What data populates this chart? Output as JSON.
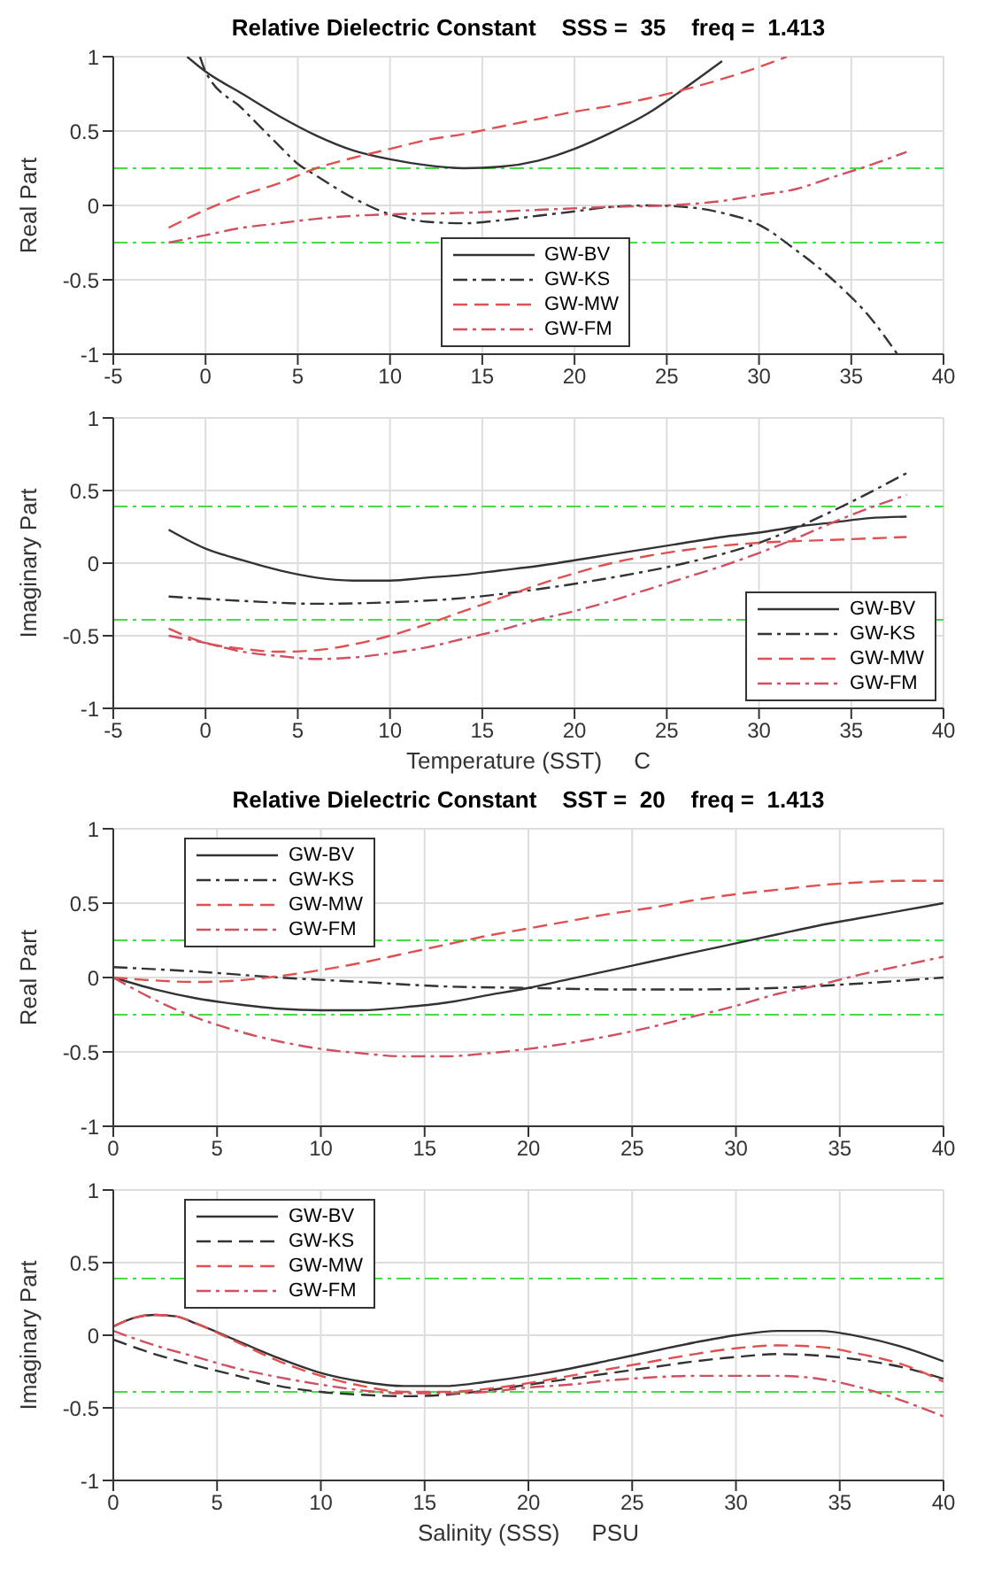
{
  "chart_data": [
    {
      "type": "line",
      "title": "Relative Dielectric Constant    SSS =  35    freq =  1.413",
      "ylabel": "Real Part",
      "xlim": [
        -5,
        40
      ],
      "xticks": [
        -5,
        0,
        5,
        10,
        15,
        20,
        25,
        30,
        35,
        40
      ],
      "ylim": [
        -1,
        1
      ],
      "yticks": [
        -1,
        -0.5,
        0,
        0.5,
        1
      ],
      "grid": true,
      "legend": "bottom",
      "marker": "none",
      "ref_lines": [
        {
          "axis": "y",
          "value": 0.25,
          "color": "#44dd44",
          "line_style": "dashdot"
        },
        {
          "axis": "y",
          "value": -0.25,
          "color": "#44dd44",
          "line_style": "dashdot"
        }
      ],
      "series": [
        {
          "name": "GW-BV",
          "color": "#333333",
          "line_style": "solid",
          "x": [
            -1,
            0,
            2,
            4,
            6,
            8,
            10,
            12,
            14,
            16,
            18,
            20,
            22,
            24,
            26,
            28
          ],
          "values": [
            1.0,
            0.9,
            0.75,
            0.6,
            0.47,
            0.37,
            0.31,
            0.27,
            0.25,
            0.26,
            0.3,
            0.38,
            0.49,
            0.62,
            0.79,
            0.97
          ]
        },
        {
          "name": "GW-KS",
          "color": "#333333",
          "line_style": "dashdot",
          "x": [
            -0.3,
            0,
            2,
            4,
            5,
            6,
            8,
            10,
            12,
            14,
            16,
            18,
            20,
            22,
            24,
            26,
            28,
            30,
            32,
            34,
            36,
            37.5
          ],
          "values": [
            1.0,
            0.9,
            0.65,
            0.4,
            0.28,
            0.2,
            0.05,
            -0.06,
            -0.11,
            -0.12,
            -0.1,
            -0.07,
            -0.04,
            -0.01,
            0.0,
            -0.01,
            -0.05,
            -0.13,
            -0.3,
            -0.5,
            -0.75,
            -1.0
          ]
        },
        {
          "name": "GW-MW",
          "color": "#e05050",
          "line_style": "dashed",
          "x": [
            -2,
            0,
            2,
            4,
            6,
            8,
            10,
            12,
            14,
            16,
            18,
            20,
            22,
            24,
            26,
            28,
            30,
            31.5
          ],
          "values": [
            -0.15,
            -0.03,
            0.07,
            0.15,
            0.25,
            0.32,
            0.38,
            0.44,
            0.48,
            0.53,
            0.58,
            0.63,
            0.67,
            0.72,
            0.78,
            0.85,
            0.93,
            1.0
          ]
        },
        {
          "name": "GW-FM",
          "color": "#d05060",
          "line_style": "dashdot",
          "x": [
            -2,
            0,
            2,
            4,
            6,
            8,
            10,
            14,
            18,
            22,
            25,
            28,
            30,
            32,
            34,
            36,
            38
          ],
          "values": [
            -0.25,
            -0.2,
            -0.15,
            -0.12,
            -0.09,
            -0.07,
            -0.06,
            -0.05,
            -0.03,
            -0.01,
            0.0,
            0.03,
            0.07,
            0.11,
            0.19,
            0.27,
            0.36
          ]
        }
      ]
    },
    {
      "type": "line",
      "xlabel": "Temperature (SST)     C",
      "ylabel": "Imaginary Part",
      "xlim": [
        -5,
        40
      ],
      "xticks": [
        -5,
        0,
        5,
        10,
        15,
        20,
        25,
        30,
        35,
        40
      ],
      "ylim": [
        -1,
        1
      ],
      "yticks": [
        -1,
        -0.5,
        0,
        0.5,
        1
      ],
      "grid": true,
      "legend": "bottom right",
      "marker": "none",
      "ref_lines": [
        {
          "axis": "y",
          "value": 0.39,
          "color": "#44dd44",
          "line_style": "dashdot"
        },
        {
          "axis": "y",
          "value": -0.39,
          "color": "#44dd44",
          "line_style": "dashdot"
        }
      ],
      "series": [
        {
          "name": "GW-BV",
          "color": "#333333",
          "line_style": "solid",
          "x": [
            -2,
            0,
            2,
            4,
            6,
            8,
            10,
            12,
            14,
            16,
            18,
            20,
            22,
            24,
            26,
            28,
            30,
            32,
            34,
            36,
            38
          ],
          "values": [
            0.23,
            0.1,
            0.02,
            -0.05,
            -0.1,
            -0.12,
            -0.12,
            -0.1,
            -0.08,
            -0.05,
            -0.02,
            0.02,
            0.06,
            0.1,
            0.14,
            0.18,
            0.21,
            0.25,
            0.28,
            0.31,
            0.32
          ]
        },
        {
          "name": "GW-KS",
          "color": "#333333",
          "line_style": "dashdot",
          "x": [
            -2,
            2,
            6,
            10,
            14,
            18,
            22,
            26,
            30,
            34,
            38
          ],
          "values": [
            -0.23,
            -0.26,
            -0.28,
            -0.27,
            -0.24,
            -0.18,
            -0.1,
            0.0,
            0.14,
            0.36,
            0.62
          ]
        },
        {
          "name": "GW-MW",
          "color": "#e05050",
          "line_style": "dashed",
          "x": [
            -2,
            0,
            2,
            4,
            6,
            8,
            10,
            12,
            14,
            16,
            18,
            20,
            22,
            24,
            26,
            28,
            30,
            34,
            38
          ],
          "values": [
            -0.45,
            -0.55,
            -0.59,
            -0.61,
            -0.6,
            -0.56,
            -0.5,
            -0.42,
            -0.33,
            -0.24,
            -0.15,
            -0.07,
            0.0,
            0.05,
            0.09,
            0.12,
            0.14,
            0.16,
            0.18
          ]
        },
        {
          "name": "GW-FM",
          "color": "#d05060",
          "line_style": "dashdot",
          "x": [
            -2,
            0,
            2,
            4,
            6,
            8,
            10,
            12,
            14,
            16,
            18,
            20,
            22,
            24,
            26,
            28,
            30,
            32,
            34,
            36,
            38
          ],
          "values": [
            -0.5,
            -0.55,
            -0.61,
            -0.64,
            -0.66,
            -0.65,
            -0.62,
            -0.58,
            -0.52,
            -0.46,
            -0.39,
            -0.33,
            -0.26,
            -0.18,
            -0.1,
            -0.02,
            0.07,
            0.17,
            0.28,
            0.38,
            0.47
          ]
        }
      ]
    },
    {
      "type": "line",
      "title": "Relative Dielectric Constant    SST =  20    freq =  1.413",
      "ylabel": "Real Part",
      "xlim": [
        0,
        40
      ],
      "xticks": [
        0,
        5,
        10,
        15,
        20,
        25,
        30,
        35,
        40
      ],
      "ylim": [
        -1,
        1
      ],
      "yticks": [
        -1,
        -0.5,
        0,
        0.5,
        1
      ],
      "grid": true,
      "legend": "top left",
      "marker": "none",
      "ref_lines": [
        {
          "axis": "y",
          "value": 0.25,
          "color": "#44dd44",
          "line_style": "dashdot"
        },
        {
          "axis": "y",
          "value": -0.25,
          "color": "#44dd44",
          "line_style": "dashdot"
        }
      ],
      "series": [
        {
          "name": "GW-BV",
          "color": "#333333",
          "line_style": "solid",
          "x": [
            0,
            2,
            4,
            6,
            8,
            10,
            12,
            14,
            16,
            18,
            20,
            22,
            24,
            26,
            28,
            30,
            32,
            34,
            36,
            38,
            40
          ],
          "values": [
            0.0,
            -0.08,
            -0.14,
            -0.18,
            -0.21,
            -0.22,
            -0.22,
            -0.2,
            -0.17,
            -0.12,
            -0.07,
            -0.01,
            0.05,
            0.11,
            0.17,
            0.23,
            0.29,
            0.35,
            0.4,
            0.45,
            0.5
          ]
        },
        {
          "name": "GW-KS",
          "color": "#333333",
          "line_style": "dashdot",
          "x": [
            0,
            4,
            8,
            12,
            16,
            20,
            24,
            28,
            32,
            36,
            40
          ],
          "values": [
            0.07,
            0.04,
            0.0,
            -0.03,
            -0.06,
            -0.07,
            -0.08,
            -0.08,
            -0.07,
            -0.04,
            0.0
          ]
        },
        {
          "name": "GW-MW",
          "color": "#e05050",
          "line_style": "dashed",
          "x": [
            0,
            2,
            4,
            6,
            8,
            10,
            12,
            14,
            16,
            18,
            20,
            22,
            24,
            26,
            28,
            30,
            32,
            34,
            36,
            38,
            40
          ],
          "values": [
            0.0,
            -0.02,
            -0.03,
            -0.02,
            0.01,
            0.05,
            0.1,
            0.16,
            0.22,
            0.28,
            0.33,
            0.38,
            0.43,
            0.47,
            0.52,
            0.56,
            0.59,
            0.62,
            0.64,
            0.65,
            0.65
          ]
        },
        {
          "name": "GW-FM",
          "color": "#d05060",
          "line_style": "dashdot",
          "x": [
            0,
            2,
            4,
            6,
            8,
            10,
            12,
            14,
            16,
            18,
            20,
            22,
            24,
            26,
            28,
            30,
            32,
            34,
            36,
            38,
            40
          ],
          "values": [
            0.0,
            -0.15,
            -0.27,
            -0.36,
            -0.43,
            -0.48,
            -0.51,
            -0.53,
            -0.53,
            -0.51,
            -0.48,
            -0.44,
            -0.39,
            -0.33,
            -0.26,
            -0.19,
            -0.11,
            -0.05,
            0.02,
            0.08,
            0.14
          ]
        }
      ]
    },
    {
      "type": "line",
      "xlabel": "Salinity (SSS)     PSU",
      "ylabel": "Imaginary Part",
      "xlim": [
        0,
        40
      ],
      "xticks": [
        0,
        5,
        10,
        15,
        20,
        25,
        30,
        35,
        40
      ],
      "ylim": [
        -1,
        1
      ],
      "yticks": [
        -1,
        -0.5,
        0,
        0.5,
        1
      ],
      "grid": true,
      "legend": "top left",
      "marker": "none",
      "ref_lines": [
        {
          "axis": "y",
          "value": 0.39,
          "color": "#44dd44",
          "line_style": "dashdot"
        },
        {
          "axis": "y",
          "value": -0.39,
          "color": "#44dd44",
          "line_style": "dashdot"
        }
      ],
      "series": [
        {
          "name": "GW-BV",
          "color": "#333333",
          "line_style": "solid",
          "x": [
            0,
            1,
            2,
            3,
            4,
            6,
            8,
            10,
            12,
            14,
            16,
            18,
            20,
            22,
            24,
            26,
            28,
            30,
            32,
            34,
            36,
            38,
            40
          ],
          "values": [
            0.06,
            0.12,
            0.14,
            0.13,
            0.08,
            -0.04,
            -0.16,
            -0.26,
            -0.32,
            -0.35,
            -0.35,
            -0.32,
            -0.28,
            -0.23,
            -0.17,
            -0.11,
            -0.05,
            0.0,
            0.03,
            0.03,
            -0.01,
            -0.08,
            -0.18
          ]
        },
        {
          "name": "GW-KS",
          "color": "#333333",
          "line_style": "dashed",
          "x": [
            0,
            2,
            4,
            6,
            8,
            10,
            12,
            14,
            16,
            18,
            20,
            22,
            24,
            26,
            28,
            30,
            32,
            34,
            36,
            38,
            40
          ],
          "values": [
            -0.03,
            -0.13,
            -0.21,
            -0.28,
            -0.35,
            -0.39,
            -0.41,
            -0.42,
            -0.41,
            -0.38,
            -0.34,
            -0.3,
            -0.26,
            -0.22,
            -0.18,
            -0.15,
            -0.13,
            -0.14,
            -0.17,
            -0.22,
            -0.3
          ]
        },
        {
          "name": "GW-MW",
          "color": "#e05050",
          "line_style": "dashed",
          "x": [
            0,
            1,
            2,
            3,
            4,
            6,
            8,
            10,
            12,
            14,
            16,
            18,
            20,
            22,
            24,
            26,
            28,
            30,
            32,
            34,
            36,
            38,
            40
          ],
          "values": [
            0.06,
            0.12,
            0.14,
            0.13,
            0.08,
            -0.05,
            -0.18,
            -0.28,
            -0.35,
            -0.39,
            -0.39,
            -0.37,
            -0.33,
            -0.28,
            -0.23,
            -0.18,
            -0.13,
            -0.09,
            -0.07,
            -0.08,
            -0.13,
            -0.2,
            -0.32
          ]
        },
        {
          "name": "GW-FM",
          "color": "#d05060",
          "line_style": "dashdot",
          "x": [
            0,
            2,
            4,
            6,
            8,
            10,
            12,
            14,
            16,
            18,
            20,
            22,
            24,
            26,
            28,
            30,
            32,
            34,
            36,
            38,
            40
          ],
          "values": [
            0.03,
            -0.07,
            -0.15,
            -0.23,
            -0.29,
            -0.34,
            -0.38,
            -0.4,
            -0.4,
            -0.39,
            -0.36,
            -0.34,
            -0.31,
            -0.29,
            -0.28,
            -0.28,
            -0.28,
            -0.3,
            -0.36,
            -0.45,
            -0.56
          ]
        }
      ]
    }
  ]
}
